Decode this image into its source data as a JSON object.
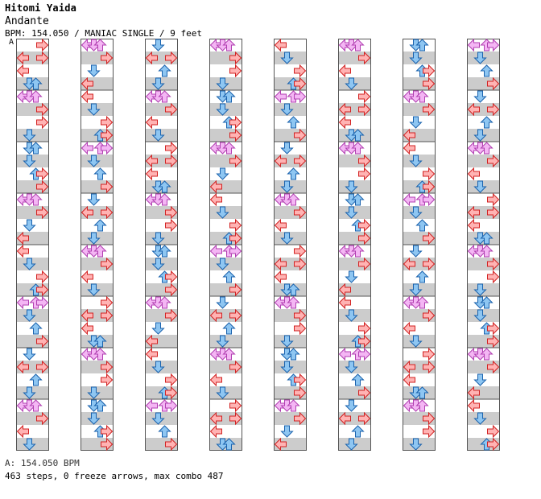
{
  "header": {
    "artist": "Hitomi Yaida",
    "title": "Andante",
    "meta": "BPM: 154.050 / MANIAC SINGLE / 9 feet",
    "section_marker": "A"
  },
  "footer": {
    "bpm_line": "A: 154.050 BPM",
    "stats_line": "463 steps, 0 freeze arrows, max combo 487"
  },
  "colors": {
    "left_right_fill": "#ffb3b3",
    "left_right_stroke": "#d22222",
    "up_down_fill": "#8ec6f2",
    "up_down_stroke": "#1a62ad",
    "jump_fill": "#f4b6f4",
    "jump_stroke": "#b13fb1",
    "stripe": "#cccccc",
    "border": "#555555"
  },
  "chart_data": {
    "type": "stepchart",
    "mode": "MANIAC SINGLE",
    "difficulty_feet": 9,
    "bpm": 154.05,
    "steps": 463,
    "freeze_arrows": 0,
    "max_combo": 487,
    "columns": 8,
    "measures_per_column": 8,
    "measures": [
      [
        {
          "b": 0,
          "d": "R"
        },
        {
          "b": 1,
          "d": "L"
        },
        {
          "b": 1,
          "d": "R"
        },
        {
          "b": 2,
          "d": "L"
        },
        {
          "b": 3,
          "d": "D"
        },
        {
          "b": 3,
          "d": "U"
        }
      ],
      [
        {
          "b": 0,
          "d": "L"
        },
        {
          "b": 0,
          "d": "D"
        },
        {
          "b": 0,
          "d": "U"
        },
        {
          "b": 1,
          "d": "R"
        },
        {
          "b": 2,
          "d": "R"
        },
        {
          "b": 3,
          "d": "D"
        }
      ],
      [
        {
          "b": 0,
          "d": "D"
        },
        {
          "b": 0,
          "d": "U"
        },
        {
          "b": 1,
          "d": "D"
        },
        {
          "b": 2,
          "d": "U"
        },
        {
          "b": 2,
          "d": "R"
        },
        {
          "b": 3,
          "d": "R"
        }
      ],
      [
        {
          "b": 0,
          "d": "L"
        },
        {
          "b": 0,
          "d": "D"
        },
        {
          "b": 0,
          "d": "U"
        },
        {
          "b": 1,
          "d": "R"
        },
        {
          "b": 2,
          "d": "D"
        },
        {
          "b": 3,
          "d": "L"
        }
      ],
      [
        {
          "b": 0,
          "d": "L"
        },
        {
          "b": 1,
          "d": "D"
        },
        {
          "b": 2,
          "d": "R"
        },
        {
          "b": 3,
          "d": "U"
        },
        {
          "b": 3,
          "d": "R"
        }
      ],
      [
        {
          "b": 0,
          "d": "L"
        },
        {
          "b": 0,
          "d": "U"
        },
        {
          "b": 0,
          "d": "R"
        },
        {
          "b": 1,
          "d": "D"
        },
        {
          "b": 2,
          "d": "U"
        },
        {
          "b": 3,
          "d": "R"
        }
      ],
      [
        {
          "b": 0,
          "d": "D"
        },
        {
          "b": 1,
          "d": "L"
        },
        {
          "b": 1,
          "d": "R"
        },
        {
          "b": 2,
          "d": "U"
        },
        {
          "b": 3,
          "d": "D"
        }
      ],
      [
        {
          "b": 0,
          "d": "L"
        },
        {
          "b": 0,
          "d": "D"
        },
        {
          "b": 0,
          "d": "U"
        },
        {
          "b": 1,
          "d": "R"
        },
        {
          "b": 2,
          "d": "L"
        },
        {
          "b": 3,
          "d": "D"
        }
      ]
    ]
  }
}
